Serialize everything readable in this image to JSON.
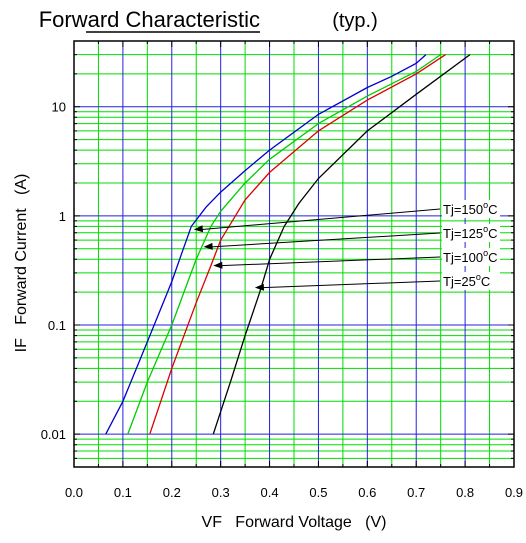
{
  "chart_data": {
    "type": "line",
    "title": "Forward Characteristic",
    "subtitle": "(typ.)",
    "xlabel": "VF   Forward Voltage   (V)",
    "ylabel": "IF   Forward Current   (A)",
    "xlim": [
      0.0,
      0.9
    ],
    "ylim": [
      0.005,
      40
    ],
    "yscale": "log",
    "grid": true,
    "x_ticks": [
      "0.0",
      "0.1",
      "0.2",
      "0.3",
      "0.4",
      "0.5",
      "0.6",
      "0.7",
      "0.8",
      "0.9"
    ],
    "y_ticks": [
      "0.01",
      "0.1",
      "1",
      "10"
    ],
    "series": [
      {
        "name": "Tj=150°C",
        "color": "#0000cc",
        "x": [
          0.065,
          0.1,
          0.15,
          0.2,
          0.22,
          0.24,
          0.27,
          0.3,
          0.35,
          0.4,
          0.5,
          0.6,
          0.65,
          0.7,
          0.72
        ],
        "y": [
          0.01,
          0.02,
          0.07,
          0.25,
          0.45,
          0.8,
          1.2,
          1.65,
          2.6,
          4.0,
          8.5,
          15.0,
          19.0,
          25.0,
          30.0
        ]
      },
      {
        "name": "Tj=125°C",
        "color": "#00cc00",
        "x": [
          0.11,
          0.15,
          0.2,
          0.25,
          0.28,
          0.3,
          0.35,
          0.4,
          0.5,
          0.6,
          0.7,
          0.75
        ],
        "y": [
          0.01,
          0.03,
          0.1,
          0.4,
          0.8,
          1.1,
          2.0,
          3.3,
          7.0,
          12.5,
          21.0,
          30.0
        ]
      },
      {
        "name": "Tj=100°C",
        "color": "#dd0000",
        "x": [
          0.155,
          0.2,
          0.25,
          0.28,
          0.3,
          0.35,
          0.4,
          0.5,
          0.6,
          0.7,
          0.76
        ],
        "y": [
          0.01,
          0.04,
          0.16,
          0.35,
          0.6,
          1.4,
          2.5,
          6.0,
          11.5,
          20.0,
          30.0
        ]
      },
      {
        "name": "Tj=25°C",
        "color": "#000000",
        "x": [
          0.285,
          0.32,
          0.35,
          0.38,
          0.4,
          0.43,
          0.46,
          0.5,
          0.6,
          0.7,
          0.81
        ],
        "y": [
          0.01,
          0.03,
          0.08,
          0.2,
          0.4,
          0.8,
          1.3,
          2.2,
          6.0,
          13.0,
          30.0
        ]
      }
    ],
    "annotations": [
      {
        "text": "Tj=150",
        "sup": "o",
        "unit": "C",
        "series": "Tj=150°C",
        "point": [
          0.245,
          0.75
        ]
      },
      {
        "text": "Tj=125",
        "sup": "o",
        "unit": "C",
        "series": "Tj=125°C",
        "point": [
          0.265,
          0.52
        ]
      },
      {
        "text": "Tj=100",
        "sup": "o",
        "unit": "C",
        "series": "Tj=100°C",
        "point": [
          0.285,
          0.35
        ]
      },
      {
        "text": "Tj=25",
        "sup": "o",
        "unit": "C",
        "series": "Tj=25°C",
        "point": [
          0.37,
          0.22
        ]
      }
    ]
  }
}
